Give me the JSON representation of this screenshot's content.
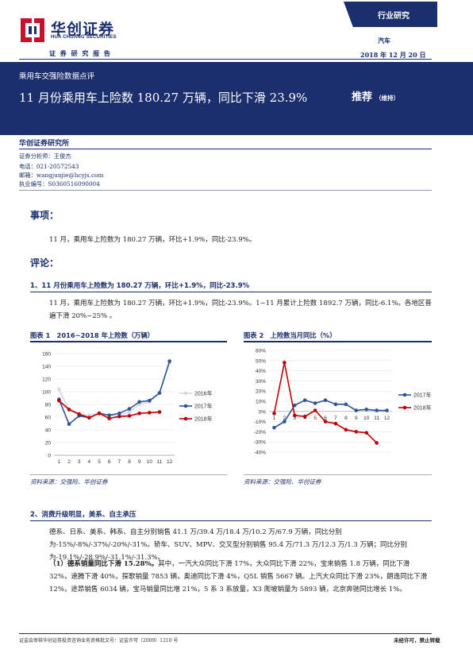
{
  "header": {
    "logo_cn": "华创证券",
    "logo_en": "HUA CHUANG SECURITIES",
    "doc_type": "证 券 研 究 报 告",
    "category": "行业研究",
    "industry": "汽车",
    "date": "2018 年 12 月 20 日"
  },
  "banner": {
    "subtitle": "乘用车交强险数据点评",
    "title": "11 月份乘用车上险数 180.27 万辆，同比下滑 23.9%",
    "rating": "推荐",
    "rating_note": "（维持）"
  },
  "institute": "华创证券研究所",
  "analyst": {
    "role": "证券分析师：王俊杰",
    "phone": "电话：021-20572543",
    "email": "邮箱：wangjunjie@hcyjs.com",
    "license": "执业编号：S0360516090004"
  },
  "sections": {
    "matters_heading": "事项：",
    "matters_text": "11 月，乘用车上险数为 180.27 万辆，环比+1.9%，同比-23.9%。",
    "comments_heading": "评论：",
    "sub1_title": "1、11 月份乘用车上险数为 180.27 万辆，环比+1.9%，同比-23.9%",
    "sub1_text": "11 月，乘用车上险数为 180.27 万辆，环比+1.9%，同比-23.9%。1~11 月累计上险数 1892.7 万辆，同比-6.1%。各地区普遍下滑 20%~25% 。",
    "sub2_title": "2、消费升级明显，美系、自主承压",
    "sub2_text": "德系、日系、美系、韩系、自主分别销售 41.1 万/39.4 万/18.4 万/10.2 万/67.9 万辆，同比分别为-15%/-8%/-37%/-20%/-31%。轿车、SUV、MPV、交叉型分别销售 95.4 万/71.3 万/12.3 万/1.3 万辆；同比分别为-19.1%/-28.9%/-31.1%/-31.3%。",
    "sub3_lead": "（1）德系销量同比下滑 15.28%。",
    "sub3_text": "其中，一汽大众同比下滑 17%，大众同比下滑 22%，宝来销售 1.8 万辆，同比下滑 32%，速腾下滑 40%，探歌销量 7853 辆，奥迪同比下滑 4%，Q5L 销售 5667 辆。上汽大众同比下滑 23%，朗逸同比下滑 12%，途昂销售 6034 辆，宝马销量同比增 21%，5 系 3 系放量，X3 爬坡销量为 5893 辆，北京奔驰同比增长 1%。"
  },
  "figure1": {
    "title": "图表 1　2016~2018 年上险数（万辆）",
    "source": "资料来源：交强险、华创证券"
  },
  "figure2": {
    "title": "图表 2　上险数当月同比（%）",
    "source": "资料来源：交强险、华创证券"
  },
  "footer": {
    "license_text": "证监会审核华创证券投资咨询业务资格批文号：证监许可（2009）1210 号",
    "disclaimer": "未经许可，禁止转载"
  },
  "colors": {
    "navy": "#1b2f6e",
    "s2016": "#d9d4e6",
    "s2017": "#2f5597",
    "s2018": "#c00000"
  },
  "chart_data": [
    {
      "type": "line",
      "x": [
        1,
        2,
        3,
        4,
        5,
        6,
        7,
        8,
        9,
        10,
        11,
        12
      ],
      "ylim": [
        0,
        160
      ],
      "yticks": [
        0,
        20,
        40,
        60,
        80,
        100,
        120,
        140,
        160
      ],
      "legend_position": "right",
      "series": [
        {
          "name": "2016年",
          "color": "#d9d4e6",
          "values": [
            104,
            71,
            63,
            63,
            66,
            62,
            62,
            68,
            80,
            84,
            98,
            146
          ]
        },
        {
          "name": "2017年",
          "color": "#2f5597",
          "values": [
            88,
            49,
            62,
            59,
            66,
            63,
            66,
            73,
            84,
            86,
            98,
            148
          ]
        },
        {
          "name": "2018年",
          "color": "#c00000",
          "values": [
            86,
            72,
            65,
            59,
            66,
            58,
            61,
            62,
            66,
            67,
            68,
            null
          ]
        }
      ]
    },
    {
      "type": "line",
      "x": [
        1,
        2,
        3,
        4,
        5,
        6,
        7,
        8,
        9,
        10,
        11,
        12
      ],
      "ylim": [
        -40,
        60
      ],
      "yticks": [
        -40,
        -30,
        -20,
        -10,
        0,
        10,
        20,
        30,
        40,
        50,
        60
      ],
      "ytick_suffix": "%",
      "legend_position": "right",
      "series": [
        {
          "name": "2017年",
          "color": "#2f5597",
          "values": [
            -16,
            -10,
            6,
            11,
            8,
            11,
            7,
            7,
            1,
            2,
            1,
            1
          ]
        },
        {
          "name": "2018年",
          "color": "#c00000",
          "values": [
            -2,
            48,
            -4,
            -5,
            1,
            -10,
            -12,
            -18,
            -20,
            -21,
            -31,
            null
          ]
        }
      ]
    }
  ]
}
